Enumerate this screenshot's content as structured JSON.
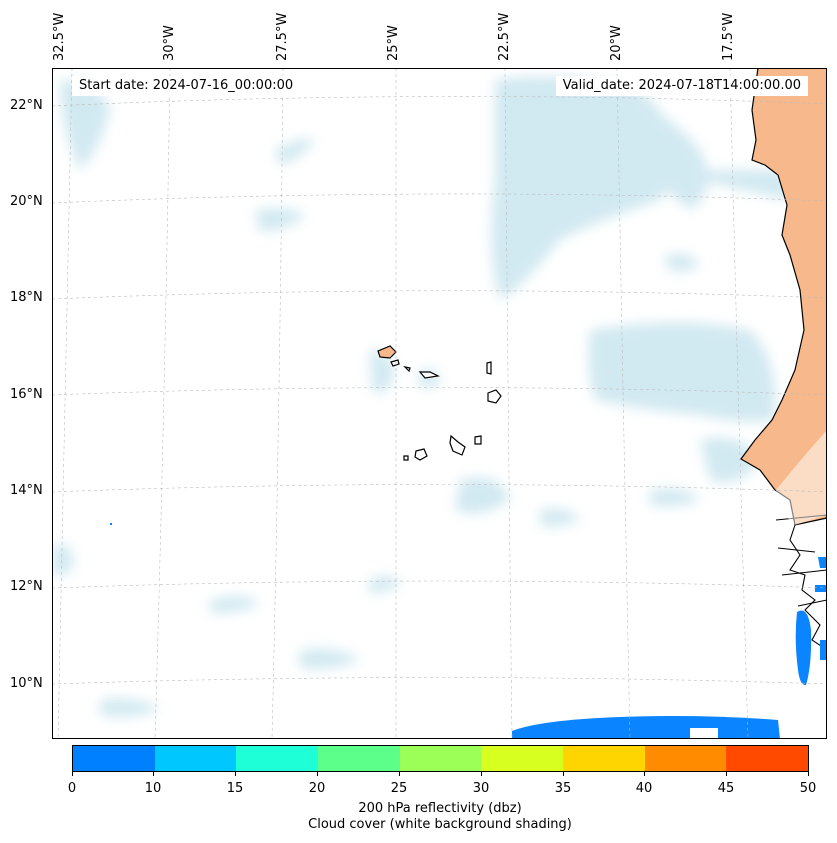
{
  "map": {
    "lon_labels": [
      "32.5°W",
      "30°W",
      "27.5°W",
      "25°W",
      "22.5°W",
      "20°W",
      "17.5°W"
    ],
    "lat_labels": [
      "22°N",
      "20°N",
      "18°N",
      "16°N",
      "14°N",
      "12°N",
      "10°N"
    ],
    "start_date": "Start date: 2024-07-16_00:00:00",
    "valid_date": "Valid_date: 2024-07-18T14:00:00.00",
    "land_color": "#f7b98b",
    "cloud_color": "#add8e6",
    "reflectivity_color": "#0a84ff"
  },
  "colorbar": {
    "ticks": [
      "0",
      "10",
      "15",
      "20",
      "25",
      "30",
      "35",
      "40",
      "45",
      "50"
    ],
    "colors": [
      "#0080ff",
      "#00c8ff",
      "#1effd8",
      "#5cff8a",
      "#9bff57",
      "#d7ff1f",
      "#ffd500",
      "#ff8c00",
      "#ff4a00"
    ],
    "label_line1": "200 hPa reflectivity (dbz)",
    "label_line2": "Cloud cover (white background shading)"
  }
}
